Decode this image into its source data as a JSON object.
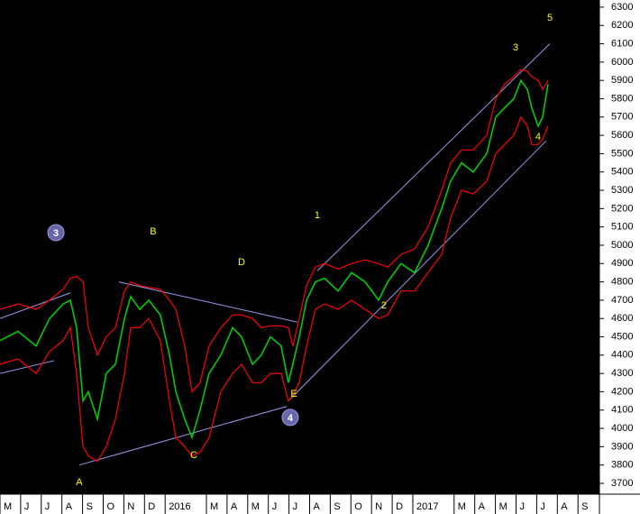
{
  "chart_data": {
    "type": "line",
    "x": [
      0,
      0.87,
      1.75,
      2.4,
      3.06,
      3.41,
      3.71,
      4.02,
      4.28,
      4.72,
      5.15,
      5.59,
      6.03,
      6.33,
      6.77,
      7.21,
      7.77,
      8.21,
      8.52,
      8.95,
      9.3,
      9.69,
      10.13,
      10.7,
      11.27,
      11.7,
      12.23,
      12.66,
      13.1,
      13.62,
      13.97,
      14.19,
      14.5,
      14.85,
      15.28,
      15.72,
      16.38,
      17.03,
      17.69,
      18.34,
      18.78,
      19.43,
      20.09,
      20.74,
      21.4,
      21.83,
      22.36,
      22.93,
      23.58,
      24.02,
      24.45,
      24.89,
      25.24,
      25.55,
      25.76,
      26.07,
      26.29,
      26.55
    ],
    "series": [
      {
        "color": "#00cc00",
        "values": [
          4480,
          4530,
          4450,
          4600,
          4680,
          4700,
          4550,
          4150,
          4200,
          4050,
          4300,
          4350,
          4600,
          4720,
          4650,
          4700,
          4620,
          4400,
          4200,
          4050,
          3950,
          4100,
          4300,
          4400,
          4550,
          4500,
          4350,
          4400,
          4500,
          4450,
          4250,
          4350,
          4500,
          4700,
          4800,
          4820,
          4750,
          4850,
          4800,
          4700,
          4800,
          4900,
          4850,
          5000,
          5200,
          5350,
          5450,
          5400,
          5500,
          5700,
          5750,
          5800,
          5900,
          5850,
          5750,
          5650,
          5700,
          5880
        ]
      },
      {
        "color": "#ff0000",
        "values": [
          4650,
          4680,
          4650,
          4700,
          4760,
          4820,
          4830,
          4800,
          4550,
          4400,
          4500,
          4550,
          4750,
          4800,
          4780,
          4770,
          4760,
          4700,
          4650,
          4450,
          4200,
          4250,
          4450,
          4550,
          4620,
          4620,
          4600,
          4550,
          4560,
          4560,
          4550,
          4450,
          4600,
          4780,
          4880,
          4900,
          4870,
          4900,
          4920,
          4900,
          4880,
          4950,
          4980,
          5100,
          5300,
          5450,
          5520,
          5520,
          5600,
          5800,
          5880,
          5920,
          5960,
          5950,
          5920,
          5900,
          5850,
          5900
        ]
      },
      {
        "color": "#ff0000",
        "values": [
          4350,
          4380,
          4300,
          4420,
          4480,
          4550,
          4300,
          3900,
          3850,
          3820,
          3900,
          4050,
          4300,
          4550,
          4550,
          4600,
          4480,
          4150,
          3950,
          3900,
          3850,
          3870,
          3950,
          4200,
          4300,
          4350,
          4250,
          4250,
          4300,
          4300,
          4150,
          4180,
          4250,
          4450,
          4650,
          4680,
          4650,
          4700,
          4650,
          4600,
          4620,
          4750,
          4750,
          4850,
          4950,
          5150,
          5300,
          5280,
          5350,
          5500,
          5550,
          5600,
          5700,
          5650,
          5550,
          5550,
          5580,
          5650
        ]
      }
    ],
    "trendlines": [
      {
        "color": "#9999ee",
        "x": [
          0,
          3.41
        ],
        "y": [
          4600,
          4740
        ]
      },
      {
        "color": "#9999ee",
        "x": [
          0,
          2.62
        ],
        "y": [
          4300,
          4370
        ]
      },
      {
        "color": "#9999ee",
        "x": [
          3.84,
          13.89
        ],
        "y": [
          3800,
          4120
        ]
      },
      {
        "color": "#9999ee",
        "x": [
          5.76,
          14.41
        ],
        "y": [
          4800,
          4580
        ]
      },
      {
        "color": "#9999ee",
        "x": [
          15.37,
          26.64
        ],
        "y": [
          4860,
          6100
        ]
      },
      {
        "color": "#9999ee",
        "x": [
          13.97,
          26.46
        ],
        "y": [
          4150,
          5570
        ]
      }
    ],
    "annotations": [
      {
        "text": "3",
        "x": 2.71,
        "y": 5069,
        "circled": true
      },
      {
        "text": "A",
        "x": 3.84,
        "y": 3705
      },
      {
        "text": "B",
        "x": 7.42,
        "y": 5074
      },
      {
        "text": "C",
        "x": 9.39,
        "y": 3853
      },
      {
        "text": "D",
        "x": 11.7,
        "y": 4907
      },
      {
        "text": "E",
        "x": 14.24,
        "y": 4188
      },
      {
        "text": "4",
        "x": 14.06,
        "y": 4060,
        "circled": true
      },
      {
        "text": "1",
        "x": 15.37,
        "y": 5163
      },
      {
        "text": "2",
        "x": 18.6,
        "y": 4670
      },
      {
        "text": "3",
        "x": 24.98,
        "y": 6078
      },
      {
        "text": "4",
        "x": 26.07,
        "y": 5591
      },
      {
        "text": "5",
        "x": 26.64,
        "y": 6241
      }
    ],
    "xlim": [
      0,
      29.04
    ],
    "xticks": [
      {
        "value": 0,
        "label": "M"
      },
      {
        "value": 1,
        "label": "J"
      },
      {
        "value": 2,
        "label": "J"
      },
      {
        "value": 3,
        "label": "A"
      },
      {
        "value": 4,
        "label": "S"
      },
      {
        "value": 5,
        "label": "O"
      },
      {
        "value": 6,
        "label": "N"
      },
      {
        "value": 7,
        "label": "D"
      },
      {
        "value": 8,
        "label": "2016"
      },
      {
        "value": 10,
        "label": "M"
      },
      {
        "value": 11,
        "label": "A"
      },
      {
        "value": 12,
        "label": "M"
      },
      {
        "value": 13,
        "label": "J"
      },
      {
        "value": 14,
        "label": "J"
      },
      {
        "value": 15,
        "label": "A"
      },
      {
        "value": 16,
        "label": "S"
      },
      {
        "value": 17,
        "label": "O"
      },
      {
        "value": 18,
        "label": "N"
      },
      {
        "value": 19,
        "label": "D"
      },
      {
        "value": 20,
        "label": "2017"
      },
      {
        "value": 22,
        "label": "M"
      },
      {
        "value": 23,
        "label": "A"
      },
      {
        "value": 24,
        "label": "M"
      },
      {
        "value": 25,
        "label": "J"
      },
      {
        "value": 26,
        "label": "J"
      },
      {
        "value": 27,
        "label": "A"
      },
      {
        "value": 28,
        "label": "S"
      }
    ],
    "ylim": [
      3641,
      6339
    ],
    "yticks": [
      3700,
      3800,
      3900,
      4000,
      4100,
      4200,
      4300,
      4400,
      4500,
      4600,
      4700,
      4800,
      4900,
      5000,
      5100,
      5200,
      5300,
      5400,
      5500,
      5600,
      5700,
      5800,
      5900,
      6000,
      6100,
      6200,
      6300
    ]
  }
}
